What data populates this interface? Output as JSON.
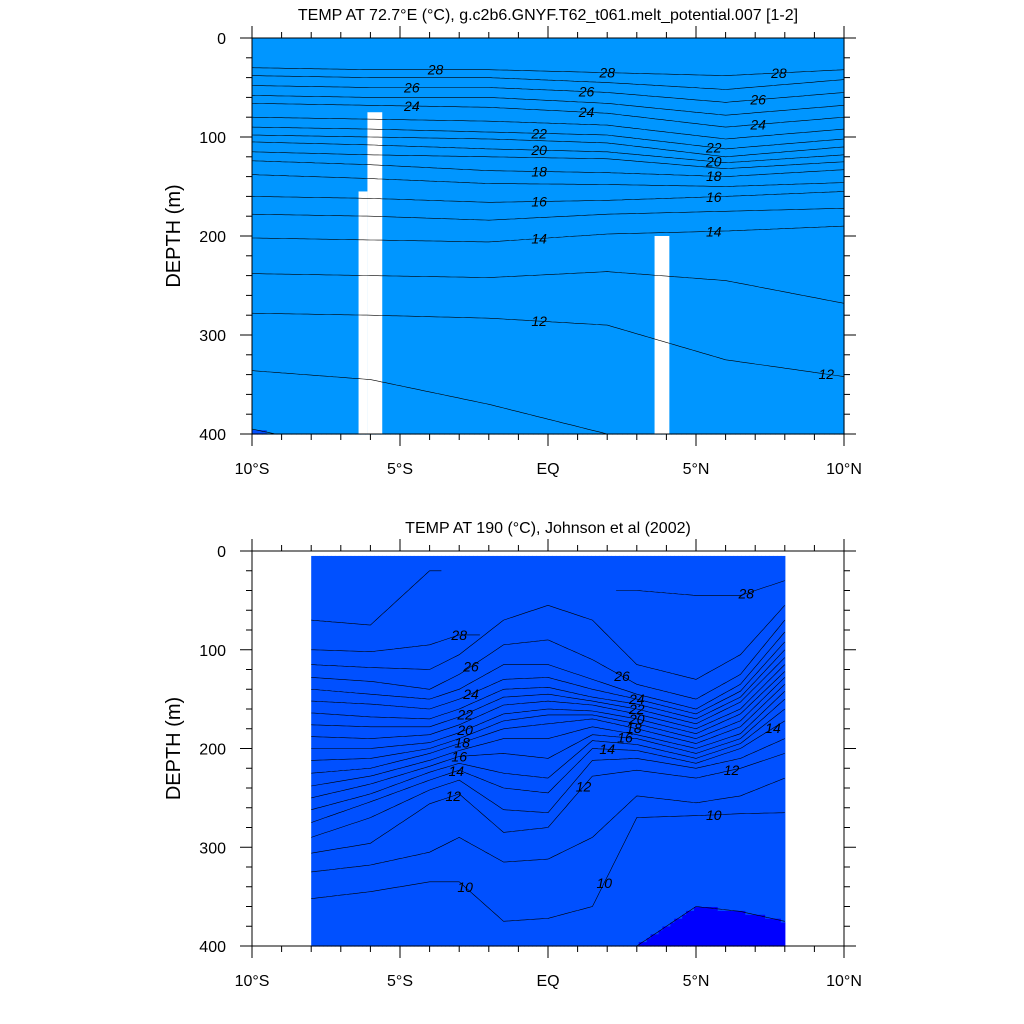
{
  "colors": {
    "levels": [
      {
        "min": 8,
        "color": "#0000ff"
      },
      {
        "min": 9,
        "color": "#0050ff"
      },
      {
        "min": 10,
        "color": "#0096ff"
      },
      {
        "min": 11,
        "color": "#00b4ff"
      },
      {
        "min": 12,
        "color": "#00d2ff"
      },
      {
        "min": 13,
        "color": "#32e6ff"
      },
      {
        "min": 14,
        "color": "#00ffff"
      },
      {
        "min": 15,
        "color": "#00ffe6"
      },
      {
        "min": 16,
        "color": "#00ffb4"
      },
      {
        "min": 17,
        "color": "#00fa82"
      },
      {
        "min": 18,
        "color": "#00e632"
      },
      {
        "min": 19,
        "color": "#32ff00"
      },
      {
        "min": 20,
        "color": "#aaff00"
      },
      {
        "min": 21,
        "color": "#ffff00"
      },
      {
        "min": 22,
        "color": "#ffe100"
      },
      {
        "min": 23,
        "color": "#ffc800"
      },
      {
        "min": 24,
        "color": "#ffaa32"
      },
      {
        "min": 25,
        "color": "#ff9632"
      },
      {
        "min": 26,
        "color": "#ff7d1e"
      },
      {
        "min": 27,
        "color": "#ff5a00"
      },
      {
        "min": 28,
        "color": "#ff0000"
      },
      {
        "min": 29,
        "color": "#d70000"
      }
    ]
  },
  "chart_data": [
    {
      "type": "heatmap",
      "title": "TEMP AT  72.7°E (°C), g.c2b6.GNYF.T62_t061.melt_potential.007 [1-2]",
      "ylabel": "DEPTH (m)",
      "xlim": [
        -10,
        10
      ],
      "ylim": [
        400,
        0
      ],
      "xticks": [
        -10,
        -5,
        0,
        5,
        10
      ],
      "xtick_labels": [
        "10°S",
        "5°S",
        "EQ",
        "5°N",
        "10°N"
      ],
      "yticks": [
        0,
        100,
        200,
        300,
        400
      ],
      "ytick_labels": [
        "0",
        "100",
        "200",
        "300",
        "400"
      ],
      "data_xrange": [
        -10,
        10
      ],
      "masked_columns": [
        [
          -6.4,
          -6.1,
          155
        ],
        [
          -6.1,
          -5.6,
          75
        ],
        [
          3.6,
          4.1,
          200
        ]
      ],
      "x": [
        -10,
        -6,
        -2,
        2,
        6,
        10
      ],
      "isotherm_depths": {
        "29": [
          null,
          null,
          null,
          null,
          null,
          null
        ],
        "28": [
          30,
          32,
          32,
          35,
          38,
          32
        ],
        "27": [
          38,
          40,
          40,
          45,
          52,
          42
        ],
        "26": [
          48,
          50,
          50,
          55,
          65,
          55
        ],
        "25": [
          58,
          60,
          60,
          66,
          78,
          68
        ],
        "24": [
          66,
          68,
          70,
          76,
          90,
          80
        ],
        "23": [
          80,
          82,
          84,
          88,
          102,
          92
        ],
        "22": [
          90,
          92,
          95,
          98,
          112,
          102
        ],
        "21": [
          98,
          100,
          102,
          106,
          120,
          110
        ],
        "20": [
          105,
          108,
          112,
          115,
          126,
          118
        ],
        "19": [
          115,
          118,
          120,
          122,
          132,
          125
        ],
        "18": [
          124,
          128,
          134,
          136,
          140,
          133
        ],
        "17": [
          138,
          142,
          147,
          148,
          150,
          146
        ],
        "16": [
          160,
          162,
          166,
          164,
          160,
          155
        ],
        "15": [
          178,
          180,
          184,
          178,
          175,
          172
        ],
        "14": [
          202,
          204,
          206,
          198,
          195,
          190
        ],
        "13": [
          238,
          240,
          242,
          236,
          245,
          268
        ],
        "12": [
          278,
          280,
          283,
          290,
          325,
          342
        ],
        "11": [
          336,
          345,
          370,
          400,
          420,
          440
        ],
        "10": [
          395,
          420,
          440,
          460,
          480,
          500
        ]
      },
      "contour_labels": [
        {
          "x": -3.8,
          "level": 28
        },
        {
          "x": 2.0,
          "level": 28
        },
        {
          "x": 7.8,
          "level": 28
        },
        {
          "x": -4.6,
          "level": 26
        },
        {
          "x": 1.3,
          "level": 26
        },
        {
          "x": 7.1,
          "level": 26
        },
        {
          "x": -4.6,
          "level": 24
        },
        {
          "x": 1.3,
          "level": 24
        },
        {
          "x": 7.1,
          "level": 24
        },
        {
          "x": -0.3,
          "level": 22
        },
        {
          "x": 5.6,
          "level": 22
        },
        {
          "x": -0.3,
          "level": 20
        },
        {
          "x": 5.6,
          "level": 20
        },
        {
          "x": -0.3,
          "level": 18
        },
        {
          "x": 5.6,
          "level": 18
        },
        {
          "x": -0.3,
          "level": 16
        },
        {
          "x": 5.6,
          "level": 16
        },
        {
          "x": -0.3,
          "level": 14
        },
        {
          "x": 5.6,
          "level": 14
        },
        {
          "x": -0.3,
          "level": 12
        },
        {
          "x": 9.4,
          "level": 12
        }
      ]
    },
    {
      "type": "heatmap",
      "title": "TEMP AT 190 (°C), Johnson et al (2002)",
      "ylabel": "DEPTH (m)",
      "xlim": [
        -10,
        10
      ],
      "ylim": [
        400,
        0
      ],
      "xticks": [
        -10,
        -5,
        0,
        5,
        10
      ],
      "xtick_labels": [
        "10°S",
        "5°S",
        "EQ",
        "5°N",
        "10°N"
      ],
      "yticks": [
        0,
        100,
        200,
        300,
        400
      ],
      "ytick_labels": [
        "0",
        "100",
        "200",
        "300",
        "400"
      ],
      "data_xrange": [
        -8,
        8
      ],
      "data_yrange": [
        5,
        400
      ],
      "x": [
        -8,
        -6,
        -4,
        -3,
        -1.5,
        0,
        1.5,
        3,
        5,
        6.5,
        8
      ],
      "isotherm_depths": {
        "29": [
          70,
          75,
          20,
          null,
          null,
          null,
          null,
          null,
          null,
          null,
          null
        ],
        "28": [
          100,
          102,
          95,
          85,
          null,
          null,
          null,
          40,
          45,
          45,
          30
        ],
        "27": [
          115,
          118,
          120,
          105,
          70,
          55,
          70,
          115,
          130,
          105,
          55
        ],
        "26": [
          128,
          132,
          140,
          125,
          95,
          90,
          110,
          135,
          150,
          125,
          70
        ],
        "25": [
          140,
          145,
          150,
          140,
          115,
          115,
          130,
          145,
          160,
          135,
          82
        ],
        "24": [
          152,
          155,
          160,
          150,
          130,
          128,
          140,
          150,
          165,
          142,
          92
        ],
        "23": [
          164,
          168,
          170,
          160,
          140,
          138,
          148,
          155,
          170,
          148,
          100
        ],
        "22": [
          176,
          178,
          178,
          168,
          148,
          145,
          152,
          160,
          175,
          153,
          108
        ],
        "21": [
          188,
          190,
          186,
          176,
          156,
          152,
          156,
          165,
          180,
          160,
          115
        ],
        "20": [
          200,
          200,
          194,
          184,
          165,
          160,
          162,
          170,
          185,
          165,
          122
        ],
        "19": [
          212,
          210,
          200,
          190,
          172,
          166,
          166,
          175,
          190,
          172,
          128
        ],
        "18": [
          225,
          220,
          205,
          195,
          180,
          175,
          170,
          180,
          195,
          178,
          135
        ],
        "17": [
          238,
          228,
          212,
          202,
          190,
          190,
          178,
          186,
          200,
          185,
          142
        ],
        "16": [
          250,
          236,
          218,
          208,
          205,
          210,
          186,
          190,
          205,
          190,
          150
        ],
        "15": [
          262,
          246,
          224,
          215,
          225,
          230,
          192,
          196,
          210,
          195,
          160
        ],
        "14": [
          275,
          254,
          232,
          222,
          240,
          245,
          200,
          202,
          215,
          200,
          172
        ],
        "13": [
          290,
          270,
          242,
          232,
          262,
          265,
          212,
          210,
          220,
          210,
          190
        ],
        "12": [
          306,
          296,
          256,
          246,
          285,
          280,
          228,
          222,
          230,
          220,
          205
        ],
        "11": [
          325,
          318,
          305,
          290,
          315,
          312,
          290,
          248,
          255,
          248,
          230
        ],
        "10": [
          352,
          345,
          335,
          335,
          375,
          372,
          360,
          270,
          268,
          266,
          265
        ],
        "9": [
          400,
          400,
          400,
          400,
          400,
          400,
          400,
          400,
          360,
          365,
          375
        ]
      },
      "contour_labels": [
        {
          "x": 6.7,
          "level": 28
        },
        {
          "x": -3.0,
          "level": 28
        },
        {
          "x": 2.5,
          "level": 26
        },
        {
          "x": -2.6,
          "level": 26
        },
        {
          "x": 3.0,
          "level": 24
        },
        {
          "x": -2.6,
          "level": 24
        },
        {
          "x": 3.0,
          "level": 22
        },
        {
          "x": -2.8,
          "level": 22
        },
        {
          "x": 3.0,
          "level": 20
        },
        {
          "x": -2.8,
          "level": 20
        },
        {
          "x": 2.9,
          "level": 18
        },
        {
          "x": -2.9,
          "level": 18
        },
        {
          "x": 2.6,
          "level": 16
        },
        {
          "x": -3.0,
          "level": 16
        },
        {
          "x": 2.0,
          "level": 14
        },
        {
          "x": -3.1,
          "level": 14
        },
        {
          "x": 7.6,
          "level": 14
        },
        {
          "x": -3.2,
          "level": 12
        },
        {
          "x": 1.2,
          "level": 12
        },
        {
          "x": 6.2,
          "level": 12
        },
        {
          "x": 5.6,
          "level": 10
        },
        {
          "x": -2.8,
          "level": 10
        },
        {
          "x": 1.9,
          "level": 10
        }
      ]
    }
  ]
}
